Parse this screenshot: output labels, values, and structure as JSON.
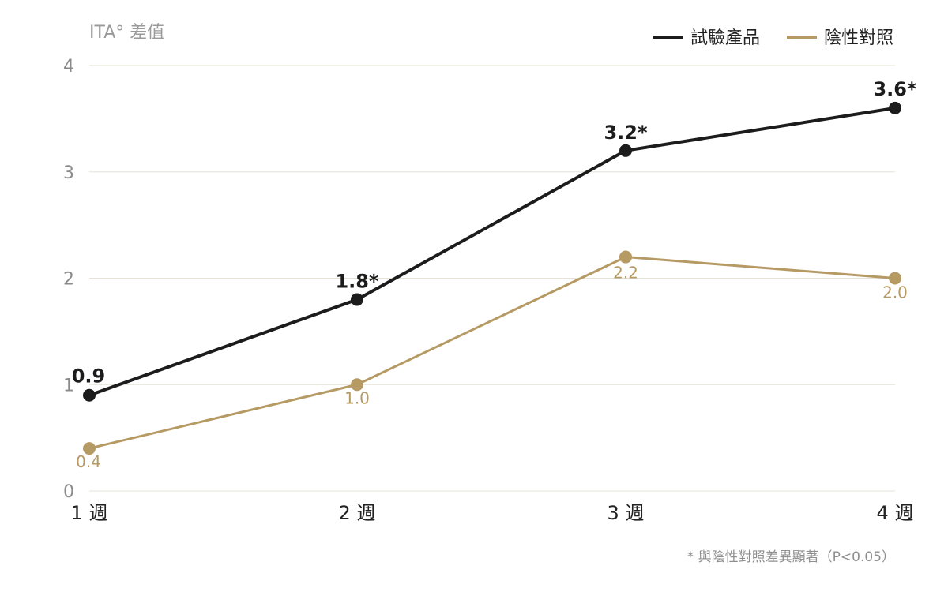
{
  "chart_data": {
    "type": "line",
    "ylabel": "ITA° 差值",
    "xlabel": "",
    "categories": [
      "1 週",
      "2 週",
      "3 週",
      "4 週"
    ],
    "ylim": [
      0,
      4
    ],
    "yticks": [
      "0",
      "1",
      "2",
      "3",
      "4"
    ],
    "grid": "horizontal",
    "legend_position": "top-right",
    "series": [
      {
        "name": "試驗產品",
        "color": "#1c1c1c",
        "values": [
          0.9,
          1.8,
          3.2,
          3.6
        ],
        "labels": [
          "0.9",
          "1.8*",
          "3.2*",
          "3.6*"
        ]
      },
      {
        "name": "陰性對照",
        "color": "#b69a64",
        "values": [
          0.4,
          1.0,
          2.2,
          2.0
        ],
        "labels": [
          "0.4",
          "1.0",
          "2.2",
          "2.0"
        ]
      }
    ],
    "footnote": "* 與陰性對照差異顯著（P<0.05）"
  }
}
